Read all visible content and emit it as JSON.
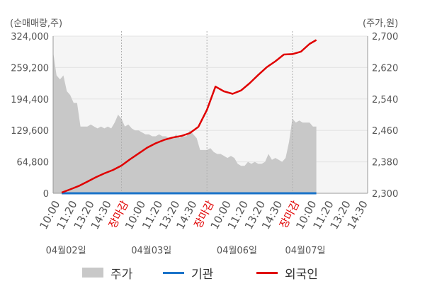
{
  "chart_data": {
    "type": "line",
    "left_axis_label": "(순매매량,주)",
    "right_axis_label": "(주가,원)",
    "left_yticks": [
      "0",
      "64,800",
      "129,600",
      "194,400",
      "259,200",
      "324,000"
    ],
    "left_ylim": [
      0,
      324000
    ],
    "right_yticks": [
      "2,300",
      "2,380",
      "2,460",
      "2,540",
      "2,620",
      "2,700"
    ],
    "right_ylim": [
      2300,
      2700
    ],
    "x_ticks": [
      {
        "label": "10:00",
        "close": false
      },
      {
        "label": "11:20",
        "close": false
      },
      {
        "label": "13:20",
        "close": false
      },
      {
        "label": "14:30",
        "close": false
      },
      {
        "label": "장마감",
        "close": true
      },
      {
        "label": "10:00",
        "close": false
      },
      {
        "label": "11:20",
        "close": false
      },
      {
        "label": "13:20",
        "close": false
      },
      {
        "label": "14:30",
        "close": false
      },
      {
        "label": "장마감",
        "close": true
      },
      {
        "label": "10:00",
        "close": false
      },
      {
        "label": "11:20",
        "close": false
      },
      {
        "label": "13:20",
        "close": false
      },
      {
        "label": "14:30",
        "close": false
      },
      {
        "label": "장마감",
        "close": true
      },
      {
        "label": "10:00",
        "close": false
      },
      {
        "label": "11:20",
        "close": false
      },
      {
        "label": "13:20",
        "close": false
      },
      {
        "label": "14:30",
        "close": false
      }
    ],
    "dates": [
      "04월02일",
      "04월03일",
      "04월06일",
      "04월07일"
    ],
    "date_tick_index": [
      1,
      6,
      11,
      15
    ],
    "day_boundaries": [
      4,
      9,
      14
    ],
    "series": [
      {
        "name": "주가",
        "axis": "right",
        "color": "#c8c8c8",
        "x": [
          0,
          0.2,
          0.4,
          0.6,
          0.8,
          1.0,
          1.2,
          1.4,
          1.6,
          1.8,
          2.0,
          2.2,
          2.4,
          2.6,
          2.8,
          3.0,
          3.2,
          3.4,
          3.6,
          3.8,
          4.0,
          4.2,
          4.4,
          4.6,
          4.8,
          5.0,
          5.2,
          5.4,
          5.6,
          5.8,
          6.0,
          6.2,
          6.4,
          6.6,
          6.8,
          7.0,
          7.2,
          7.4,
          7.6,
          7.8,
          8.0,
          8.2,
          8.4,
          8.6,
          8.8,
          9.0,
          9.2,
          9.4,
          9.6,
          9.8,
          10.0,
          10.2,
          10.4,
          10.6,
          10.8,
          11.0,
          11.2,
          11.4,
          11.6,
          11.8,
          12.0,
          12.2,
          12.4,
          12.6,
          12.8,
          13.0,
          13.2,
          13.4,
          13.6,
          13.8,
          14.0,
          14.2,
          14.4,
          14.6,
          14.8,
          15.0,
          15.2,
          15.4
        ],
        "values": [
          2660,
          2600,
          2590,
          2600,
          2560,
          2550,
          2530,
          2530,
          2470,
          2470,
          2470,
          2475,
          2470,
          2465,
          2470,
          2465,
          2470,
          2465,
          2480,
          2500,
          2490,
          2470,
          2475,
          2465,
          2460,
          2460,
          2455,
          2450,
          2450,
          2445,
          2445,
          2450,
          2445,
          2445,
          2440,
          2440,
          2450,
          2440,
          2445,
          2445,
          2460,
          2450,
          2440,
          2410,
          2410,
          2410,
          2415,
          2405,
          2400,
          2400,
          2395,
          2390,
          2395,
          2390,
          2375,
          2370,
          2370,
          2380,
          2375,
          2380,
          2375,
          2375,
          2380,
          2400,
          2385,
          2390,
          2385,
          2380,
          2390,
          2430,
          2490,
          2480,
          2485,
          2480,
          2480,
          2480,
          2470,
          2470
        ]
      },
      {
        "name": "기관",
        "axis": "left",
        "color": "#1a73c9",
        "x": [
          0.5,
          15.4
        ],
        "values": [
          0,
          0
        ]
      },
      {
        "name": "외국인",
        "axis": "left",
        "color": "#e00000",
        "x": [
          0.5,
          1.0,
          1.5,
          2.0,
          2.5,
          3.0,
          3.5,
          4.0,
          4.5,
          5.0,
          5.5,
          6.0,
          6.5,
          7.0,
          7.5,
          8.0,
          8.5,
          9.0,
          9.5,
          10.0,
          10.5,
          11.0,
          11.5,
          12.0,
          12.5,
          13.0,
          13.5,
          14.0,
          14.5,
          15.0,
          15.4
        ],
        "values": [
          1500,
          8000,
          15000,
          24000,
          33000,
          41000,
          48000,
          57000,
          70000,
          82000,
          94000,
          103000,
          110000,
          115000,
          118000,
          124000,
          137000,
          172000,
          220000,
          210000,
          205000,
          212000,
          227000,
          244000,
          260000,
          272000,
          286000,
          287000,
          292000,
          308000,
          316000
        ]
      }
    ]
  },
  "legend": [
    {
      "label": "주가",
      "kind": "area",
      "color": "#c8c8c8"
    },
    {
      "label": "기관",
      "kind": "line",
      "color": "#1a73c9"
    },
    {
      "label": "외국인",
      "kind": "line",
      "color": "#e00000"
    }
  ]
}
